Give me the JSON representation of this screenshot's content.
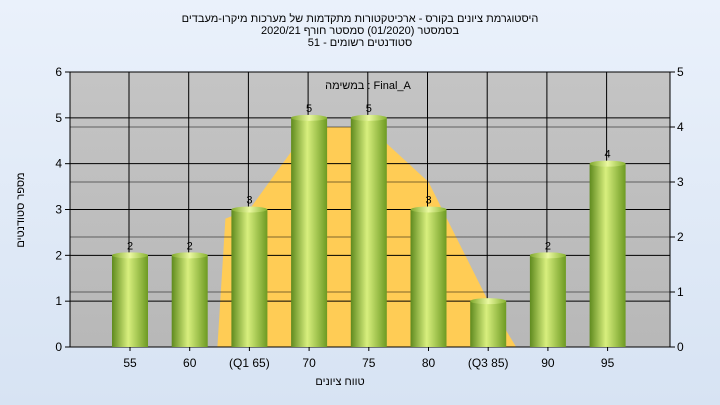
{
  "chart_data": {
    "type": "bar",
    "title_lines": [
      "היסטוגרמת ציונים בקורס - ארכיטקטורות מתקדמות של מערכות מיקרו-מעבדים",
      "בסמסטר  (01/2020)  סמסטר חורף  2020/21",
      "סטודנטים רשומים - 51"
    ],
    "annotation": "במשימה : Final_A",
    "categories": [
      "55",
      "60",
      "(Q1 65)",
      "70",
      "75",
      "80",
      "(Q3 85)",
      "90",
      "95"
    ],
    "values": [
      2,
      2,
      3,
      5,
      5,
      3,
      1,
      2,
      4
    ],
    "data_labels": [
      "2",
      "2",
      "3",
      "5",
      "5",
      "3",
      "",
      "2",
      "4"
    ],
    "xlabel": "טווח ציונים",
    "ylabel": "מספר סטודנטים",
    "ylim": [
      0,
      6
    ],
    "yticks": [
      "0",
      "1",
      "2",
      "3",
      "4",
      "5",
      "6"
    ],
    "y2lim": [
      0,
      5
    ],
    "y2ticks": [
      "0",
      "1",
      "2",
      "3",
      "4",
      "5"
    ],
    "distribution_curve": {
      "x_categories": [
        "(Q1 65)",
        "70",
        "75",
        "80",
        "(Q3 85)"
      ],
      "values": [
        3,
        4.8,
        4.8,
        3.6,
        1
      ]
    },
    "grid": true,
    "colors": {
      "plot_bg": "#bdbdbd",
      "bar_dark": "#5f8a1e",
      "bar_light": "#d8ef7e",
      "curve_fill": "#ffcc55",
      "grid": "#000000"
    }
  }
}
